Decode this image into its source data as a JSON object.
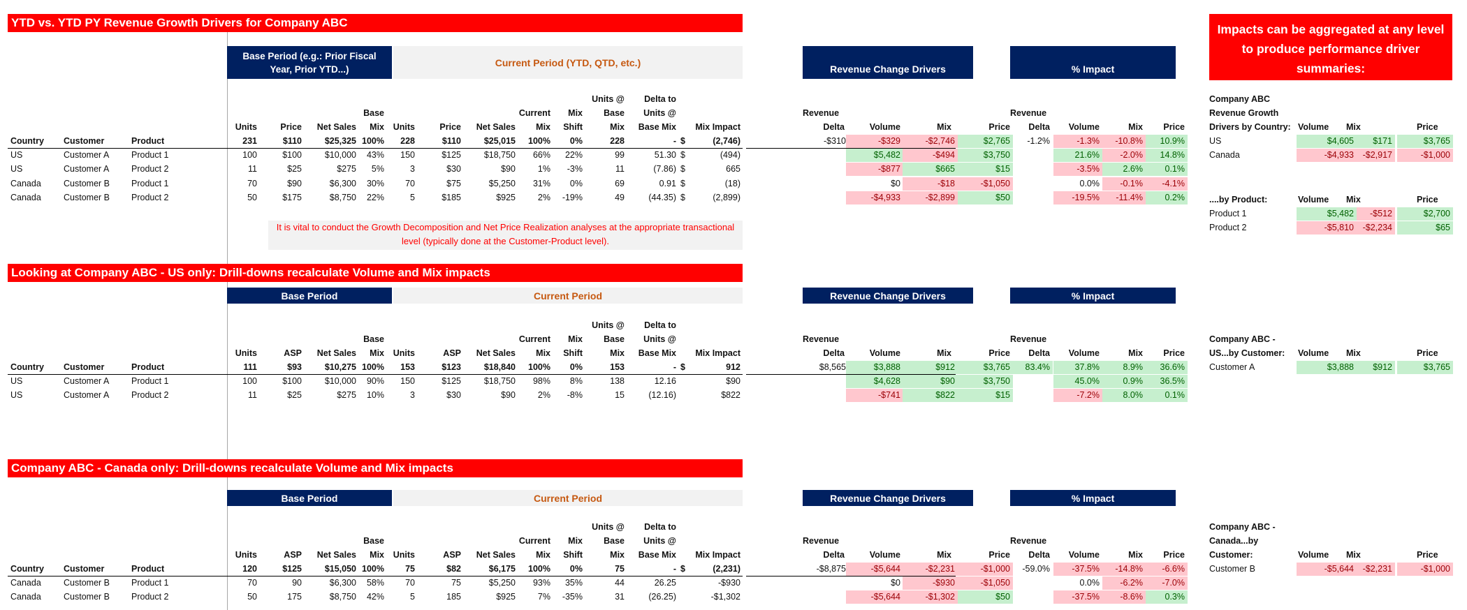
{
  "titles": {
    "main": "YTD vs. YTD PY Revenue Growth Drivers for Company ABC",
    "us": "Looking at Company ABC - US only: Drill-downs recalculate Volume and Mix impacts",
    "canada": "Company ABC - Canada only: Drill-downs recalculate Volume and Mix impacts",
    "aggregate": "Impacts can be aggregated at any level to produce performance driver summaries:"
  },
  "bands": {
    "base_main": "Base Period (e.g.: Prior Fiscal Year, Prior YTD...)",
    "current_main": "Current Period (YTD, QTD, etc.)",
    "base": "Base Period",
    "current": "Current Period",
    "rev_drivers": "Revenue Change Drivers",
    "pct_impact": "% Impact"
  },
  "note": "It is vital to conduct the Growth Decomposition and Net Price Realization analyses at the appropriate transactional level (typically done at the Customer-Product level).",
  "headers": {
    "country": "Country",
    "customer": "Customer",
    "product": "Product",
    "units": "Units",
    "price": "Price",
    "asp": "ASP",
    "net_sales": "Net Sales",
    "base": "Base",
    "mix": "Mix",
    "current": "Current",
    "shift": "Shift",
    "units_at": "Units @",
    "base_w": "Base",
    "delta_to": "Delta to",
    "units_at2": "Units @",
    "base_mix": "Base Mix",
    "mix_impact": "Mix Impact",
    "revenue": "Revenue",
    "delta": "Delta",
    "volume": "Volume",
    "price_col": "Price"
  },
  "main": {
    "totals": [
      "231",
      "$110",
      "$25,325",
      "100%",
      "228",
      "$110",
      "$25,015",
      "100%",
      "0%",
      "228",
      "-",
      "$",
      "(2,746)"
    ],
    "rows": [
      [
        "US",
        "Customer A",
        "Product 1",
        "100",
        "$100",
        "$10,000",
        "43%",
        "150",
        "$125",
        "$18,750",
        "66%",
        "22%",
        "99",
        "51.30",
        "$",
        "(494)"
      ],
      [
        "US",
        "Customer A",
        "Product 2",
        "11",
        "$25",
        "$275",
        "5%",
        "3",
        "$30",
        "$90",
        "1%",
        "-3%",
        "11",
        "(7.86)",
        "$",
        "665"
      ],
      [
        "Canada",
        "Customer B",
        "Product 1",
        "70",
        "$90",
        "$6,300",
        "30%",
        "70",
        "$75",
        "$5,250",
        "31%",
        "0%",
        "69",
        "0.91",
        "$",
        "(18)"
      ],
      [
        "Canada",
        "Customer B",
        "Product 2",
        "50",
        "$175",
        "$8,750",
        "22%",
        "5",
        "$185",
        "$925",
        "2%",
        "-19%",
        "49",
        "(44.35)",
        "$",
        "(2,899)"
      ]
    ],
    "drivers_total": [
      "-$310",
      "-$329",
      "-$2,746",
      "$2,765"
    ],
    "drivers_rows": [
      [
        "$5,482",
        "-$494",
        "$3,750"
      ],
      [
        "-$877",
        "$665",
        "$15"
      ],
      [
        "$0",
        "-$18",
        "-$1,050"
      ],
      [
        "-$4,933",
        "-$2,899",
        "$50"
      ]
    ],
    "pct_total": [
      "-1.2%",
      "-1.3%",
      "-10.8%",
      "10.9%"
    ],
    "pct_rows": [
      [
        "21.6%",
        "-2.0%",
        "14.8%"
      ],
      [
        "-3.5%",
        "2.6%",
        "0.1%"
      ],
      [
        "0.0%",
        "-0.1%",
        "-4.1%"
      ],
      [
        "-19.5%",
        "-11.4%",
        "0.2%"
      ]
    ]
  },
  "us": {
    "totals": [
      "111",
      "$93",
      "$10,275",
      "100%",
      "153",
      "$123",
      "$18,840",
      "100%",
      "0%",
      "153",
      "-",
      "$",
      "912"
    ],
    "rows": [
      [
        "US",
        "Customer A",
        "Product 1",
        "100",
        "$100",
        "$10,000",
        "90%",
        "150",
        "$125",
        "$18,750",
        "98%",
        "8%",
        "138",
        "12.16",
        "",
        "$90"
      ],
      [
        "US",
        "Customer A",
        "Product 2",
        "11",
        "$25",
        "$275",
        "10%",
        "3",
        "$30",
        "$90",
        "2%",
        "-8%",
        "15",
        "(12.16)",
        "",
        "$822"
      ]
    ],
    "drivers_total": [
      "$8,565",
      "$3,888",
      "$912",
      "$3,765"
    ],
    "drivers_rows": [
      [
        "$4,628",
        "$90",
        "$3,750"
      ],
      [
        "-$741",
        "$822",
        "$15"
      ]
    ],
    "pct_total": [
      "83.4%",
      "37.8%",
      "8.9%",
      "36.6%"
    ],
    "pct_rows": [
      [
        "45.0%",
        "0.9%",
        "36.5%"
      ],
      [
        "-7.2%",
        "8.0%",
        "0.1%"
      ]
    ]
  },
  "canada": {
    "totals": [
      "120",
      "$125",
      "$15,050",
      "100%",
      "75",
      "$82",
      "$6,175",
      "100%",
      "0%",
      "75",
      "-",
      "$",
      "(2,231)"
    ],
    "rows": [
      [
        "Canada",
        "Customer B",
        "Product 1",
        "70",
        "90",
        "$6,300",
        "58%",
        "70",
        "75",
        "$5,250",
        "93%",
        "35%",
        "44",
        "26.25",
        "",
        "-$930"
      ],
      [
        "Canada",
        "Customer B",
        "Product 2",
        "50",
        "175",
        "$8,750",
        "42%",
        "5",
        "185",
        "$925",
        "7%",
        "-35%",
        "31",
        "(26.25)",
        "",
        "-$1,302"
      ]
    ],
    "drivers_total": [
      "-$8,875",
      "-$5,644",
      "-$2,231",
      "-$1,000"
    ],
    "drivers_rows": [
      [
        "$0",
        "-$930",
        "-$1,050"
      ],
      [
        "-$5,644",
        "-$1,302",
        "$50"
      ]
    ],
    "pct_total": [
      "-59.0%",
      "-37.5%",
      "-14.8%",
      "-6.6%"
    ],
    "pct_rows": [
      [
        "0.0%",
        "-6.2%",
        "-7.0%"
      ],
      [
        "-37.5%",
        "-8.6%",
        "0.3%"
      ]
    ]
  },
  "summary": {
    "by_country_title": [
      "Company ABC",
      "Revenue Growth",
      "Drivers by Country:"
    ],
    "by_country": [
      [
        "US",
        "$4,605",
        "$171",
        "$3,765"
      ],
      [
        "Canada",
        "-$4,933",
        "-$2,917",
        "-$1,000"
      ]
    ],
    "by_product_title": "....by Product:",
    "by_product": [
      [
        "Product 1",
        "$5,482",
        "-$512",
        "$2,700"
      ],
      [
        "Product 2",
        "-$5,810",
        "-$2,234",
        "$65"
      ]
    ],
    "us_title": [
      "Company ABC -",
      "US...by Customer:"
    ],
    "us_rows": [
      [
        "Customer A",
        "$3,888",
        "$912",
        "$3,765"
      ]
    ],
    "ca_title": [
      "Company ABC -",
      "Canada...by",
      "Customer:"
    ],
    "ca_rows": [
      [
        "Customer B",
        "-$5,644",
        "-$2,231",
        "-$1,000"
      ]
    ]
  },
  "colors": {
    "red": "#ff0000",
    "navy": "#002060",
    "neg_fill": "#ffc7ce",
    "pos_fill": "#c6efce"
  }
}
